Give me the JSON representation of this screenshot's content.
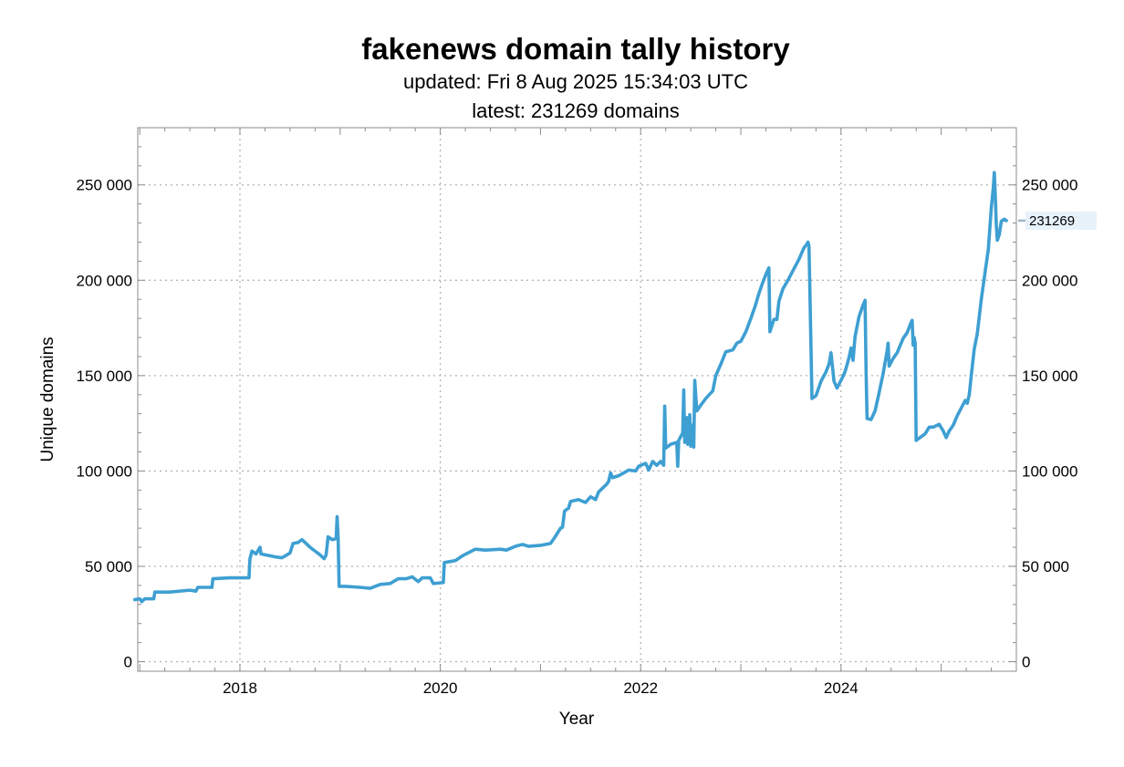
{
  "chart_data": {
    "type": "line",
    "title": "fakenews domain tally history",
    "subtitle_lines": [
      "updated: Fri 8 Aug 2025 15:34:03 UTC",
      "latest: 231269 domains"
    ],
    "xlabel": "Year",
    "ylabel": "Unique domains",
    "xlim": [
      2016.98,
      2025.75
    ],
    "ylim": [
      -5000,
      280000
    ],
    "x_ticks": [
      2018,
      2020,
      2022,
      2024
    ],
    "x_tick_labels": [
      "2018",
      "2020",
      "2022",
      "2024"
    ],
    "y_ticks": [
      0,
      50000,
      100000,
      150000,
      200000,
      250000
    ],
    "y_tick_labels": [
      "0",
      "50 000",
      "100 000",
      "150 000",
      "200 000",
      "250 000"
    ],
    "grid": true,
    "line_color": "#3e9fd2",
    "latest_label": "231269",
    "latest_value": 231269,
    "series": [
      {
        "points": [
          [
            2016.95,
            32500
          ],
          [
            2017.0,
            33000
          ],
          [
            2017.02,
            31500
          ],
          [
            2017.05,
            33000
          ],
          [
            2017.14,
            33000
          ],
          [
            2017.15,
            36500
          ],
          [
            2017.3,
            36500
          ],
          [
            2017.5,
            37500
          ],
          [
            2017.56,
            37000
          ],
          [
            2017.58,
            39000
          ],
          [
            2017.72,
            39000
          ],
          [
            2017.73,
            43500
          ],
          [
            2017.9,
            44000
          ],
          [
            2018.0,
            44000
          ],
          [
            2018.05,
            44000
          ],
          [
            2018.09,
            44000
          ],
          [
            2018.1,
            54000
          ],
          [
            2018.12,
            58000
          ],
          [
            2018.16,
            56500
          ],
          [
            2018.2,
            60000
          ],
          [
            2018.21,
            56500
          ],
          [
            2018.35,
            55000
          ],
          [
            2018.42,
            54500
          ],
          [
            2018.5,
            57000
          ],
          [
            2018.53,
            62000
          ],
          [
            2018.58,
            62500
          ],
          [
            2018.62,
            64000
          ],
          [
            2018.7,
            60000
          ],
          [
            2018.75,
            58000
          ],
          [
            2018.8,
            56000
          ],
          [
            2018.84,
            54000
          ],
          [
            2018.86,
            56000
          ],
          [
            2018.88,
            65500
          ],
          [
            2018.92,
            64000
          ],
          [
            2018.96,
            64500
          ],
          [
            2018.97,
            76000
          ],
          [
            2018.98,
            65000
          ],
          [
            2018.99,
            39500
          ],
          [
            2019.05,
            39500
          ],
          [
            2019.2,
            39000
          ],
          [
            2019.3,
            38500
          ],
          [
            2019.4,
            40500
          ],
          [
            2019.5,
            41000
          ],
          [
            2019.58,
            43500
          ],
          [
            2019.66,
            43500
          ],
          [
            2019.72,
            44500
          ],
          [
            2019.78,
            42000
          ],
          [
            2019.82,
            44000
          ],
          [
            2019.9,
            44000
          ],
          [
            2019.93,
            41000
          ],
          [
            2020.03,
            41500
          ],
          [
            2020.04,
            52000
          ],
          [
            2020.15,
            53000
          ],
          [
            2020.22,
            55500
          ],
          [
            2020.35,
            59000
          ],
          [
            2020.45,
            58500
          ],
          [
            2020.6,
            59000
          ],
          [
            2020.66,
            58500
          ],
          [
            2020.75,
            60500
          ],
          [
            2020.82,
            61500
          ],
          [
            2020.88,
            60500
          ],
          [
            2021.0,
            61000
          ],
          [
            2021.1,
            62000
          ],
          [
            2021.14,
            65000
          ],
          [
            2021.2,
            70000
          ],
          [
            2021.22,
            70500
          ],
          [
            2021.24,
            79000
          ],
          [
            2021.28,
            80500
          ],
          [
            2021.3,
            84000
          ],
          [
            2021.38,
            85000
          ],
          [
            2021.45,
            83500
          ],
          [
            2021.5,
            86500
          ],
          [
            2021.55,
            85000
          ],
          [
            2021.58,
            89000
          ],
          [
            2021.62,
            91000
          ],
          [
            2021.66,
            93000
          ],
          [
            2021.68,
            94500
          ],
          [
            2021.7,
            99000
          ],
          [
            2021.72,
            96500
          ],
          [
            2021.78,
            97500
          ],
          [
            2021.88,
            100500
          ],
          [
            2021.95,
            100000
          ],
          [
            2021.98,
            102500
          ],
          [
            2022.05,
            104000
          ],
          [
            2022.08,
            100500
          ],
          [
            2022.12,
            105000
          ],
          [
            2022.16,
            103000
          ],
          [
            2022.2,
            105000
          ],
          [
            2022.23,
            103000
          ],
          [
            2022.24,
            134000
          ],
          [
            2022.25,
            112000
          ],
          [
            2022.3,
            114000
          ],
          [
            2022.36,
            115000
          ],
          [
            2022.37,
            102500
          ],
          [
            2022.38,
            116000
          ],
          [
            2022.42,
            120000
          ],
          [
            2022.43,
            142500
          ],
          [
            2022.44,
            115000
          ],
          [
            2022.46,
            128000
          ],
          [
            2022.47,
            114000
          ],
          [
            2022.49,
            129500
          ],
          [
            2022.5,
            113000
          ],
          [
            2022.52,
            124000
          ],
          [
            2022.53,
            112500
          ],
          [
            2022.54,
            147500
          ],
          [
            2022.56,
            131500
          ],
          [
            2022.6,
            134500
          ],
          [
            2022.65,
            138000
          ],
          [
            2022.72,
            142000
          ],
          [
            2022.75,
            150000
          ],
          [
            2022.8,
            156000
          ],
          [
            2022.85,
            162500
          ],
          [
            2022.92,
            163500
          ],
          [
            2022.96,
            167000
          ],
          [
            2023.0,
            168000
          ],
          [
            2023.05,
            173000
          ],
          [
            2023.1,
            180000
          ],
          [
            2023.14,
            186000
          ],
          [
            2023.18,
            193000
          ],
          [
            2023.22,
            199000
          ],
          [
            2023.25,
            203000
          ],
          [
            2023.28,
            206500
          ],
          [
            2023.29,
            173000
          ],
          [
            2023.33,
            179500
          ],
          [
            2023.36,
            179500
          ],
          [
            2023.38,
            189000
          ],
          [
            2023.42,
            195500
          ],
          [
            2023.48,
            201000
          ],
          [
            2023.52,
            205000
          ],
          [
            2023.58,
            211000
          ],
          [
            2023.63,
            217000
          ],
          [
            2023.66,
            219000
          ],
          [
            2023.67,
            220000
          ],
          [
            2023.68,
            218000
          ],
          [
            2023.69,
            192500
          ],
          [
            2023.7,
            165000
          ],
          [
            2023.71,
            138000
          ],
          [
            2023.75,
            139500
          ],
          [
            2023.8,
            147000
          ],
          [
            2023.85,
            152000
          ],
          [
            2023.88,
            156000
          ],
          [
            2023.9,
            162000
          ],
          [
            2023.92,
            152000
          ],
          [
            2023.93,
            147000
          ],
          [
            2023.96,
            143500
          ],
          [
            2024.0,
            147500
          ],
          [
            2024.04,
            152000
          ],
          [
            2024.08,
            159500
          ],
          [
            2024.1,
            164500
          ],
          [
            2024.12,
            158000
          ],
          [
            2024.14,
            170500
          ],
          [
            2024.18,
            181000
          ],
          [
            2024.22,
            187000
          ],
          [
            2024.24,
            189500
          ],
          [
            2024.25,
            152500
          ],
          [
            2024.26,
            127500
          ],
          [
            2024.3,
            127000
          ],
          [
            2024.34,
            131500
          ],
          [
            2024.38,
            141000
          ],
          [
            2024.42,
            151000
          ],
          [
            2024.46,
            163000
          ],
          [
            2024.47,
            167000
          ],
          [
            2024.48,
            155000
          ],
          [
            2024.52,
            159000
          ],
          [
            2024.56,
            162000
          ],
          [
            2024.6,
            167000
          ],
          [
            2024.62,
            169500
          ],
          [
            2024.66,
            172500
          ],
          [
            2024.7,
            178000
          ],
          [
            2024.71,
            179000
          ],
          [
            2024.72,
            166000
          ],
          [
            2024.73,
            170000
          ],
          [
            2024.74,
            167000
          ],
          [
            2024.75,
            116000
          ],
          [
            2024.8,
            118000
          ],
          [
            2024.84,
            119500
          ],
          [
            2024.88,
            123000
          ],
          [
            2024.92,
            123000
          ],
          [
            2024.98,
            124500
          ],
          [
            2025.02,
            121000
          ],
          [
            2025.05,
            117500
          ],
          [
            2025.08,
            121000
          ],
          [
            2025.12,
            124000
          ],
          [
            2025.16,
            129000
          ],
          [
            2025.2,
            133000
          ],
          [
            2025.24,
            137000
          ],
          [
            2025.26,
            135500
          ],
          [
            2025.28,
            140000
          ],
          [
            2025.3,
            150000
          ],
          [
            2025.33,
            164000
          ],
          [
            2025.36,
            172000
          ],
          [
            2025.4,
            190000
          ],
          [
            2025.44,
            205000
          ],
          [
            2025.47,
            216000
          ],
          [
            2025.5,
            238000
          ],
          [
            2025.52,
            248500
          ],
          [
            2025.53,
            256500
          ],
          [
            2025.54,
            244000
          ],
          [
            2025.55,
            229000
          ],
          [
            2025.56,
            221000
          ],
          [
            2025.58,
            224000
          ],
          [
            2025.6,
            231000
          ],
          [
            2025.63,
            232000
          ],
          [
            2025.65,
            231269
          ]
        ]
      }
    ]
  }
}
